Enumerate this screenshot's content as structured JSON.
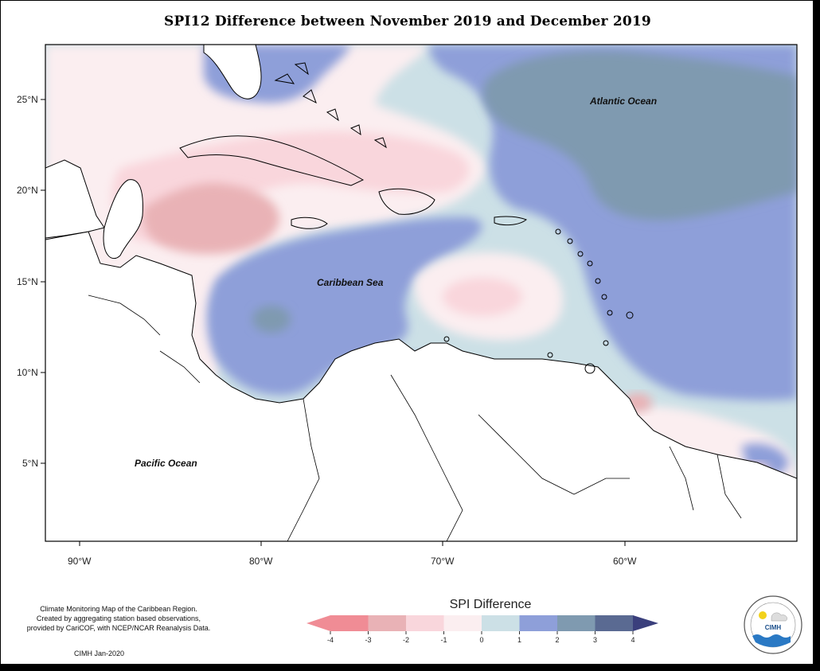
{
  "title": "SPI12 Difference between November 2019 and December 2019",
  "ocean_labels": {
    "atlantic": "Atlantic Ocean",
    "caribbean": "Caribbean Sea",
    "pacific": "Pacific Ocean"
  },
  "axes": {
    "lat_ticks": [
      "25°N",
      "20°N",
      "15°N",
      "10°N",
      "5°N"
    ],
    "lon_ticks": [
      "90°W",
      "80°W",
      "70°W",
      "60°W"
    ]
  },
  "legend": {
    "title": "SPI Difference",
    "ticks": [
      "-4",
      "-3",
      "-2",
      "-1",
      "0",
      "1",
      "2",
      "3",
      "4"
    ],
    "colors": [
      "#f08c95",
      "#e9b2b6",
      "#f9d6dc",
      "#fbeef0",
      "#cce0e6",
      "#8e9fd9",
      "#7f9ab0",
      "#5a6a92",
      "#3a3f7c"
    ]
  },
  "credits": [
    "Climate Monitoring Map of the Caribbean Region.",
    "Created by aggregating station based observations,",
    "provided by CariCOF, with NCEP/NCAR Reanalysis Data."
  ],
  "date_note": "CIMH Jan-2020",
  "logo": {
    "text": "CIMH",
    "ring_text": "Caribbean Institute for Meteorology and Hydrology"
  }
}
